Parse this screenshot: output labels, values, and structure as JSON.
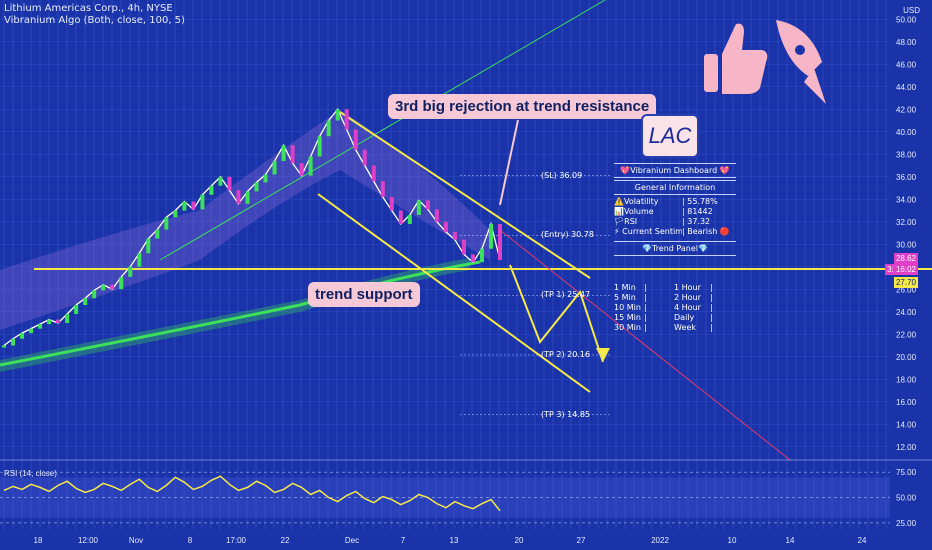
{
  "header": {
    "title": "Lithium Americas Corp., 4h, NYSE",
    "indicator": "Vibranium Algo (Both, close, 100, 5)"
  },
  "currency": "USD",
  "colors": {
    "background": "#1a33a8",
    "trendline": "#f5e94a",
    "ema": "#3ce05a",
    "price_tag_pink": "#e040c8",
    "price_tag_yellow": "#f5e94a",
    "callout": "#f7c8d6",
    "rsi_line": "#f5e94a"
  },
  "callouts": {
    "rejection": "3rd big rejection at trend resistance",
    "support": "trend support"
  },
  "ticker_box": "LAC",
  "dashboard": {
    "title": "💖Vibranium Dashboard 💖",
    "section": "General Information",
    "rows": [
      {
        "k": "⚠️Volatility",
        "v": "| 55.78%"
      },
      {
        "k": "📊Volume",
        "v": "| 81442"
      },
      {
        "k": "🏳RSI",
        "v": "| 37.32"
      },
      {
        "k": "⚡ Current Sentiment",
        "v": "| Bearish 🔴"
      }
    ],
    "trend_panel": "💎Trend Panel💎",
    "trend_rows": [
      {
        "a": "1 Min",
        "b": "|",
        "c": "1 Hour",
        "d": "|"
      },
      {
        "a": "5 Min",
        "b": "|",
        "c": "2 Hour",
        "d": "|"
      },
      {
        "a": "10 Min",
        "b": "|",
        "c": "4 Hour",
        "d": "|"
      },
      {
        "a": "15 Min",
        "b": "|",
        "c": "Daily",
        "d": "|"
      },
      {
        "a": "30 Min",
        "b": "|",
        "c": "Week",
        "d": "|"
      }
    ]
  },
  "levels": [
    {
      "label": "(SL) 36.09",
      "value": 36.09
    },
    {
      "label": "(Entry) 30.78",
      "value": 30.78
    },
    {
      "label": "(TP 1) 25.47",
      "value": 25.47
    },
    {
      "label": "(TP 2) 20.16",
      "value": 20.16
    },
    {
      "label": "(TP 3) 14.85",
      "value": 14.85
    }
  ],
  "price_tags": {
    "current": "28.62",
    "countdown": "3: 16:02",
    "ema_value": "27.70"
  },
  "rsi_label": "RSI (14, close)",
  "chart_data": {
    "type": "line",
    "title": "Lithium Americas Corp., 4h, NYSE",
    "y_axis": {
      "ticks": [
        "50.00",
        "48.00",
        "46.00",
        "44.00",
        "42.00",
        "40.00",
        "38.00",
        "36.00",
        "34.00",
        "32.00",
        "30.00",
        "28.00",
        "26.00",
        "24.00",
        "22.00",
        "20.00",
        "18.00",
        "16.00",
        "14.00",
        "12.00"
      ],
      "range": [
        11,
        51
      ]
    },
    "x_axis": {
      "ticks": [
        "18",
        "12:00",
        "Nov",
        "8",
        "17:00",
        "22",
        "Dec",
        "7",
        "13",
        "20",
        "27",
        "2022",
        "10",
        "14",
        "24"
      ]
    },
    "series": [
      {
        "values": [
          21.0,
          21.6,
          22.1,
          22.5,
          22.9,
          23.3,
          23.0,
          23.8,
          24.6,
          25.2,
          25.9,
          26.4,
          26.0,
          27.1,
          28.0,
          29.2,
          30.5,
          31.3,
          32.4,
          33.0,
          33.8,
          33.1,
          34.4,
          35.2,
          36.0,
          34.8,
          33.6,
          34.7,
          35.5,
          36.2,
          37.4,
          38.8,
          37.2,
          36.1,
          37.8,
          39.6,
          41.0,
          42.0,
          40.2,
          38.4,
          37.0,
          35.6,
          34.2,
          33.0,
          31.8,
          32.6,
          33.9,
          33.1,
          32.0,
          31.1,
          30.4,
          29.1,
          28.4,
          29.6,
          31.8,
          28.6
        ]
      }
    ],
    "rsi": {
      "ticks": [
        "75.00",
        "50.00",
        "25.00"
      ],
      "range": [
        20,
        85
      ],
      "values": [
        57,
        61,
        58,
        63,
        60,
        56,
        62,
        66,
        59,
        55,
        58,
        64,
        61,
        57,
        63,
        68,
        60,
        56,
        62,
        70,
        65,
        58,
        61,
        67,
        71,
        63,
        57,
        60,
        66,
        62,
        55,
        58,
        64,
        60,
        53,
        57,
        50,
        46,
        52,
        56,
        49,
        45,
        51,
        48,
        43,
        47,
        53,
        50,
        44,
        40,
        46,
        42,
        39,
        44,
        48,
        37
      ]
    },
    "grid": true
  }
}
